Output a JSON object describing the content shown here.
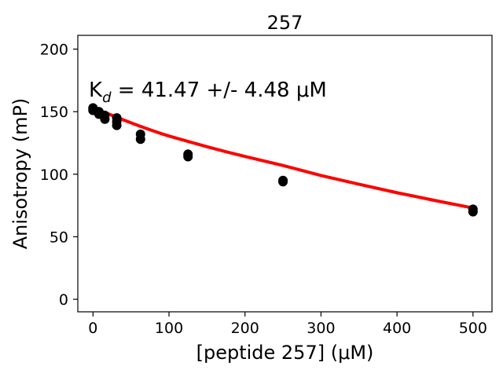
{
  "chart_data": {
    "type": "scatter",
    "title": "257",
    "xlabel": "[peptide 257] (μM)",
    "ylabel": "Anisotropy (mP)",
    "annotation": {
      "prefix": "K",
      "subscript": "d",
      "text": " = 41.47 +/- 4.48 μM"
    },
    "xlim": [
      -20,
      525
    ],
    "ylim": [
      -10,
      211
    ],
    "xticks": [
      0,
      100,
      200,
      300,
      400,
      500
    ],
    "yticks": [
      0,
      50,
      100,
      150,
      200
    ],
    "grid": false,
    "series": [
      {
        "kind": "points",
        "color": "#000000",
        "x": [
          0,
          0,
          0,
          7.8,
          7.8,
          15.6,
          15.6,
          31.25,
          31.25,
          31.25,
          62.5,
          62.5,
          125,
          125,
          250,
          250,
          500,
          500
        ],
        "y": [
          153,
          152,
          151,
          150,
          148,
          147,
          144,
          145,
          142,
          139,
          132,
          128,
          116,
          114,
          95,
          94,
          72,
          70
        ]
      },
      {
        "kind": "fit",
        "color": "#ff0000",
        "x": [
          0,
          10,
          20,
          30,
          40,
          50,
          60,
          70,
          80,
          90,
          100,
          125,
          150,
          175,
          200,
          250,
          300,
          350,
          400,
          450,
          500
        ],
        "y": [
          153,
          150.6,
          148.3,
          145.8,
          143.4,
          141.1,
          138.8,
          136.6,
          134.5,
          132.4,
          130.5,
          126.2,
          122.0,
          118.0,
          114.2,
          107.0,
          99.0,
          92.0,
          85.2,
          79.0,
          73.0
        ]
      }
    ]
  }
}
